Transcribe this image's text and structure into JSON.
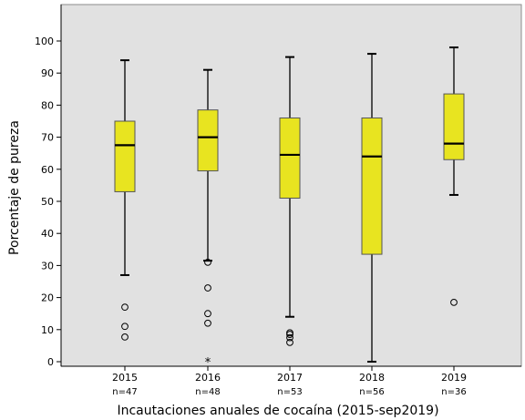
{
  "chart_data": {
    "type": "boxplot",
    "title": "",
    "xlabel": "Incautaciones anuales de cocaína (2015-sep2019)",
    "ylabel": "Porcentaje de pureza",
    "ylim": [
      0,
      108
    ],
    "yticks": [
      0,
      10,
      20,
      30,
      40,
      50,
      60,
      70,
      80,
      90,
      100
    ],
    "grid": false,
    "colors": {
      "plot_background": "#e1e1e1",
      "box_fill": "#e8e420",
      "box_stroke": "#555555",
      "median": "#000000"
    },
    "categories": [
      "2015",
      "2016",
      "2017",
      "2018",
      "2019"
    ],
    "counts": [
      "n=47",
      "n=48",
      "n=53",
      "n=56",
      "n=36"
    ],
    "boxes": [
      {
        "category": "2015",
        "whisker_low": 27,
        "q1": 53,
        "median": 67.5,
        "q3": 75,
        "whisker_high": 94,
        "outliers": [
          17,
          11,
          7.7
        ],
        "extremes": []
      },
      {
        "category": "2016",
        "whisker_low": 31.5,
        "q1": 59.5,
        "median": 70,
        "q3": 78.5,
        "whisker_high": 91,
        "outliers": [
          31,
          23,
          15,
          12
        ],
        "extremes": [
          0.3
        ]
      },
      {
        "category": "2017",
        "whisker_low": 14,
        "q1": 51,
        "median": 64.5,
        "q3": 76,
        "whisker_high": 95,
        "outliers": [
          9,
          8.5,
          7.5,
          6
        ],
        "extremes": []
      },
      {
        "category": "2018",
        "whisker_low": 0,
        "q1": 33.5,
        "median": 64,
        "q3": 76,
        "whisker_high": 96,
        "outliers": [],
        "extremes": []
      },
      {
        "category": "2019",
        "whisker_low": 52,
        "q1": 63,
        "median": 68,
        "q3": 83.5,
        "whisker_high": 98,
        "outliers": [
          18.5
        ],
        "extremes": []
      }
    ]
  }
}
